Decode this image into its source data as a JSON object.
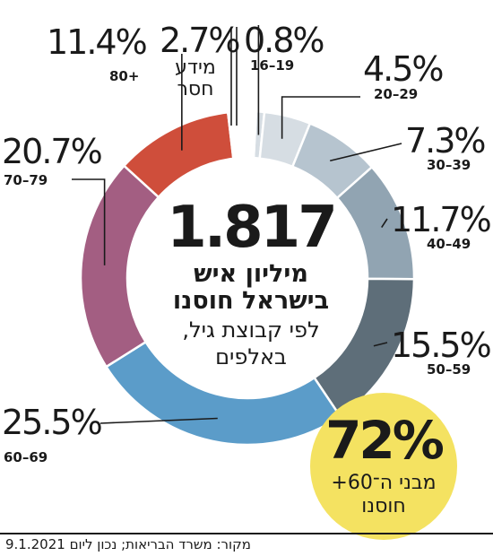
{
  "chart_data": {
    "type": "pie",
    "donut": true,
    "unit": "%",
    "slices": [
      {
        "label": "16–19",
        "value": 0.8,
        "color": "#d6dde3"
      },
      {
        "label": "20–29",
        "value": 4.5,
        "color": "#d6dde3"
      },
      {
        "label": "30–39",
        "value": 7.3,
        "color": "#b6c4cf"
      },
      {
        "label": "40–49",
        "value": 11.7,
        "color": "#91a4b2"
      },
      {
        "label": "50–59",
        "value": 15.5,
        "color": "#5e6e79"
      },
      {
        "label": "60–69",
        "value": 25.5,
        "color": "#5b9cc9"
      },
      {
        "label": "70–79",
        "value": 20.7,
        "color": "#a35e82"
      },
      {
        "label": "80+",
        "value": 11.4,
        "color": "#cf4e3b"
      },
      {
        "label": "מידע חסר",
        "value": 2.7,
        "color": "#ffffff"
      }
    ],
    "labels": [
      {
        "pct": "0.8%",
        "group": "16–19"
      },
      {
        "pct": "4.5%",
        "group": "20–29"
      },
      {
        "pct": "7.3%",
        "group": "30–39"
      },
      {
        "pct": "11.7%",
        "group": "40–49"
      },
      {
        "pct": "15.5%",
        "group": "50–59"
      },
      {
        "pct": "25.5%",
        "group": "60–69"
      },
      {
        "pct": "20.7%",
        "group": "70–79"
      },
      {
        "pct": "11.4%",
        "group": "80+"
      },
      {
        "pct": "2.7%",
        "sub": [
          "מידע",
          "חסר"
        ]
      }
    ],
    "center": {
      "total": "1.817",
      "line1": "מיליון איש",
      "line2": "בישראל חוסנו",
      "line3": "לפי קבוצת גיל,",
      "line4": "באלפים"
    },
    "badge": {
      "pct": "72%",
      "line1": "מבני ה־60+",
      "line2": "חוסנו"
    },
    "source": "מקור: משרד הבריאות; נכון ליום 9.1.2021"
  },
  "colors": {
    "ink": "#1a1a1a",
    "badge": "#f4e261"
  }
}
